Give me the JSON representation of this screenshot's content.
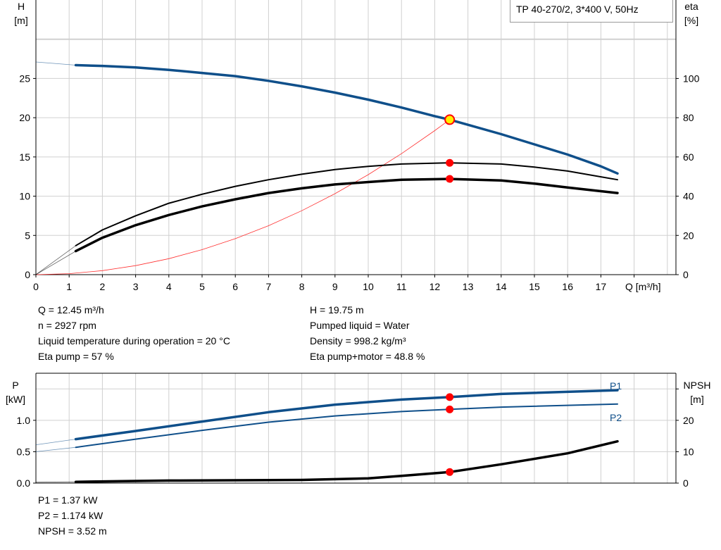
{
  "title": "TP 40-270/2, 3*400 V, 50Hz",
  "colors": {
    "head": "#0f4f8a",
    "eta": "#000000",
    "system": "#ff3030",
    "point": "#ff0000",
    "point_yellow": "#ffee00",
    "grid": "#d0d0d0"
  },
  "chart_data": [
    {
      "type": "line",
      "left_axis": {
        "label": "H",
        "unit": "[m]",
        "ticks": [
          "0",
          "5",
          "10",
          "15",
          "20",
          "25"
        ],
        "range": [
          0,
          35
        ]
      },
      "right_axis": {
        "label": "eta",
        "unit": "[%]",
        "ticks": [
          "0",
          "20",
          "40",
          "60",
          "80",
          "100"
        ],
        "range": [
          0,
          140
        ]
      },
      "x_axis": {
        "label": "Q [m³/h]",
        "ticks": [
          "0",
          "1",
          "2",
          "3",
          "4",
          "5",
          "6",
          "7",
          "8",
          "9",
          "10",
          "11",
          "12",
          "13",
          "14",
          "15",
          "16",
          "17"
        ],
        "range": [
          0,
          19.2
        ]
      },
      "grid": true,
      "series": [
        {
          "id": "H",
          "axis": "left",
          "x": [
            0,
            1.2,
            2,
            3,
            4,
            5,
            6,
            7,
            8,
            9,
            10,
            11,
            12,
            12.45,
            13,
            14,
            15,
            16,
            17,
            17.5
          ],
          "y": [
            27.1,
            26.7,
            26.6,
            26.4,
            26.1,
            25.7,
            25.3,
            24.7,
            24.0,
            23.2,
            22.3,
            21.3,
            20.2,
            19.75,
            19.1,
            17.9,
            16.6,
            15.3,
            13.8,
            12.9
          ]
        },
        {
          "id": "eta_pump",
          "axis": "right",
          "x": [
            0,
            1.2,
            2,
            3,
            4,
            5,
            6,
            7,
            8,
            9,
            10,
            11,
            12.45,
            14,
            15,
            16,
            17.5
          ],
          "y": [
            0,
            14.8,
            22.8,
            30,
            36.4,
            41,
            45,
            48.4,
            51.2,
            53.6,
            55.2,
            56.4,
            57,
            56.4,
            54.8,
            52.8,
            48.4
          ]
        },
        {
          "id": "eta_pump_motor",
          "axis": "right",
          "x": [
            0,
            1.2,
            2,
            3,
            4,
            5,
            6,
            7,
            8,
            9,
            10,
            11,
            12.45,
            14,
            15,
            16,
            17.5
          ],
          "y": [
            0,
            12,
            18.8,
            25.2,
            30.4,
            34.8,
            38.4,
            41.6,
            44,
            46,
            47.2,
            48.4,
            48.8,
            48,
            46.4,
            44.4,
            41.6
          ]
        },
        {
          "id": "system",
          "axis": "left",
          "x": [
            0,
            1,
            2,
            3,
            4,
            5,
            6,
            7,
            8,
            9,
            10,
            11,
            12,
            12.45
          ],
          "y": [
            0,
            0.13,
            0.51,
            1.15,
            2.04,
            3.19,
            4.59,
            6.24,
            8.15,
            10.32,
            12.74,
            15.42,
            18.35,
            19.75
          ]
        }
      ],
      "duty_points": [
        {
          "x": 12.45,
          "y": 19.75,
          "axis": "left"
        },
        {
          "x": 12.45,
          "y": 57,
          "axis": "right"
        },
        {
          "x": 12.45,
          "y": 48.8,
          "axis": "right"
        }
      ]
    },
    {
      "type": "line",
      "left_axis": {
        "label": "P",
        "unit": "[kW]",
        "ticks": [
          "0.0",
          "0.5",
          "1.0"
        ],
        "range": [
          0,
          1.75
        ]
      },
      "right_axis": {
        "label": "NPSH",
        "unit": "[m]",
        "ticks": [
          "0",
          "10",
          "20"
        ],
        "range": [
          0,
          35
        ]
      },
      "grid": true,
      "series": [
        {
          "id": "P1",
          "name": "P1",
          "axis": "left",
          "x": [
            0,
            1.2,
            3,
            5,
            7,
            9,
            11,
            12.45,
            14,
            17.5
          ],
          "y": [
            0.61,
            0.7,
            0.83,
            0.98,
            1.13,
            1.25,
            1.33,
            1.37,
            1.42,
            1.48
          ]
        },
        {
          "id": "P2",
          "name": "P2",
          "axis": "left",
          "x": [
            0,
            1.2,
            3,
            5,
            7,
            9,
            11,
            12.45,
            14,
            17.5
          ],
          "y": [
            0.5,
            0.57,
            0.7,
            0.84,
            0.97,
            1.07,
            1.14,
            1.174,
            1.21,
            1.26
          ]
        },
        {
          "id": "NPSH",
          "axis": "right",
          "x": [
            0,
            1.2,
            4,
            8,
            10,
            11,
            12.45,
            14,
            16,
            17.5
          ],
          "y": [
            0.3,
            0.4,
            0.8,
            1.0,
            1.5,
            2.3,
            3.52,
            6,
            9.5,
            13.3
          ]
        }
      ],
      "duty_points": [
        {
          "x": 12.45,
          "y": 1.37,
          "axis": "left"
        },
        {
          "x": 12.45,
          "y": 1.174,
          "axis": "left"
        },
        {
          "x": 12.45,
          "y": 3.52,
          "axis": "right"
        }
      ]
    }
  ],
  "info_top": {
    "left": [
      "Q = 12.45 m³/h",
      "n = 2927 rpm",
      "Liquid temperature during operation = 20 °C",
      "Eta pump = 57 %"
    ],
    "right": [
      "H = 19.75 m",
      "Pumped liquid = Water",
      "Density = 998.2 kg/m³",
      "Eta pump+motor = 48.8 %"
    ]
  },
  "info_bottom": [
    "P1 = 1.37 kW",
    "P2 = 1.174 kW",
    "NPSH = 3.52 m"
  ]
}
